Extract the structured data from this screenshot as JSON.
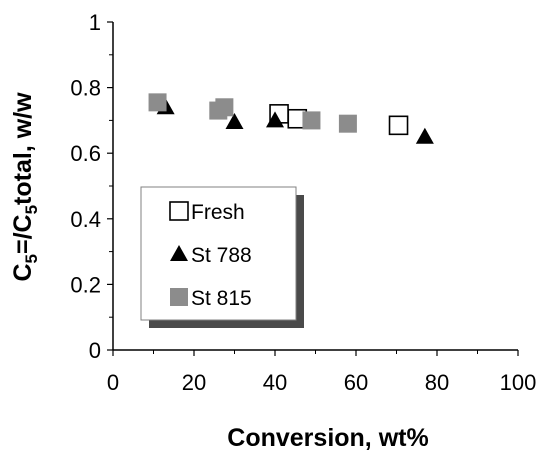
{
  "chart_data": {
    "type": "scatter",
    "title": "",
    "xlabel": "Conversion, wt%",
    "ylabel_parts": [
      "C",
      "5",
      "=/C",
      "5",
      "total, w/w"
    ],
    "xlim": [
      0,
      100
    ],
    "ylim": [
      0,
      1
    ],
    "x_ticks": [
      "0",
      "20",
      "40",
      "60",
      "80",
      "100"
    ],
    "y_ticks": [
      "0",
      "0.2",
      "0.4",
      "0.6",
      "0.8",
      "1"
    ],
    "grid": false,
    "legend_position": "lower-left",
    "series": [
      {
        "name": "Fresh",
        "marker": "square-open",
        "color": "#000000",
        "points": [
          [
            41,
            0.72
          ],
          [
            45.5,
            0.705
          ],
          [
            70.5,
            0.685
          ]
        ]
      },
      {
        "name": "St 788",
        "marker": "triangle",
        "color": "#000000",
        "points": [
          [
            13,
            0.74
          ],
          [
            30,
            0.695
          ],
          [
            40,
            0.7
          ],
          [
            77,
            0.65
          ]
        ]
      },
      {
        "name": "St 815",
        "marker": "square-filled",
        "color": "#8c8c8c",
        "points": [
          [
            11,
            0.755
          ],
          [
            26,
            0.73
          ],
          [
            27.5,
            0.74
          ],
          [
            49,
            0.7
          ],
          [
            58,
            0.69
          ]
        ]
      }
    ]
  }
}
